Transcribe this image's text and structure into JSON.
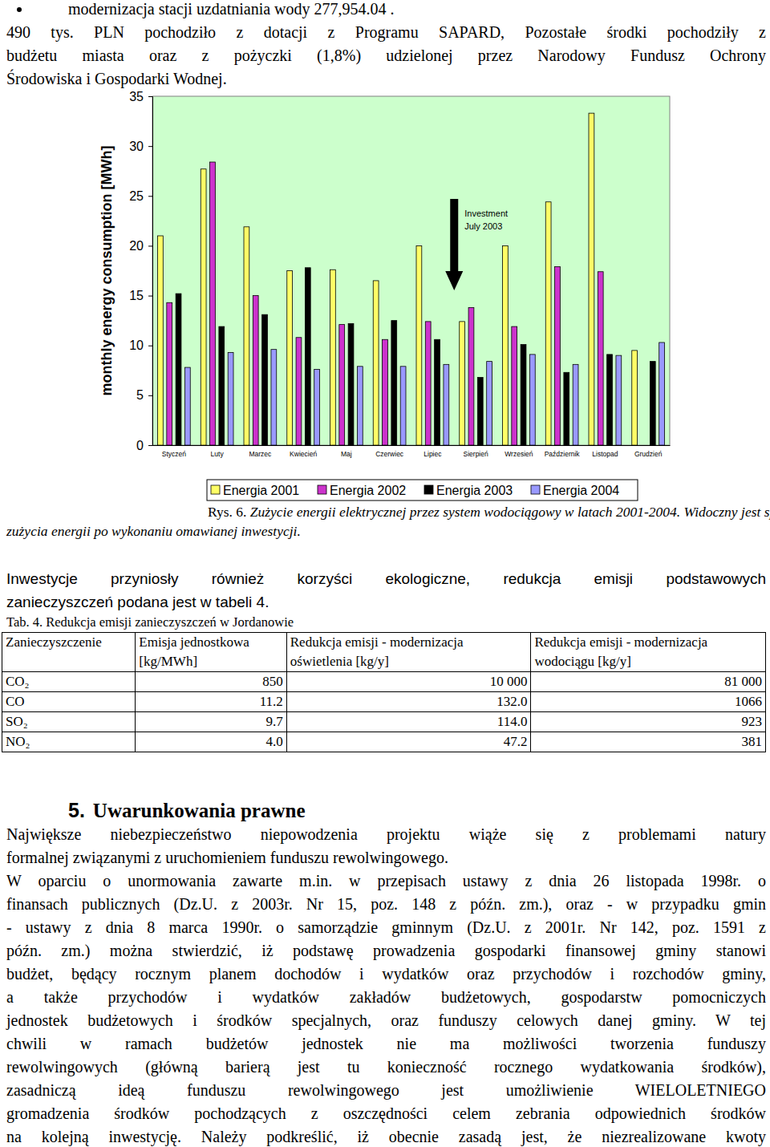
{
  "document": {
    "intro": {
      "bullet": "modernizacja stacji uzdatniania wody 277,954.04 .",
      "lines": [
        "490 tys. PLN pochodziło z dotacji z Programu SAPARD, Pozostałe środki pochodziły z",
        "budżetu miasta oraz z pożyczki (1,8%) udzielonej przez Narodowy Fundusz Ochrony",
        "Środowiska i Gospodarki Wodnej."
      ]
    },
    "caption": {
      "label": "Rys. 6.",
      "lines": [
        "Zużycie energii elektrycznej przez system wodociągowy w latach 2001-2004. Widoczny jest spadek",
        "zużycia energii po wykonaniu omawianej inwestycji."
      ]
    },
    "paragraph1": [
      "Inwestycje przyniosły również korzyści ekologiczne, redukcja emisji podstawowych",
      "zanieczyszczeń podana jest w tabeli 4."
    ],
    "table": {
      "title": "Tab. 4. Redukcja emisji zanieczyszczeń w Jordanowie",
      "header": [
        "Zanieczyszczenie",
        "Emisja jednostkowa [kg/MWh]",
        "Redukcja emisji - modernizacja oświetlenia [kg/y]",
        "Redukcja emisji - modernizacja wodociągu [kg/y]"
      ],
      "rows": [
        [
          "CO₂",
          "850",
          "10 000",
          "81 000"
        ],
        [
          "CO",
          "11.2",
          "132.0",
          "1066"
        ],
        [
          "SO₂",
          "9.7",
          "114.0",
          "923"
        ],
        [
          "NO₂",
          "4.0",
          "47.2",
          "381"
        ]
      ]
    },
    "section": {
      "number": "5.",
      "title": "Uwarunkowania prawne"
    },
    "paragraph2": [
      "Największe niebezpieczeństwo niepowodzenia projektu wiąże się z problemami natury",
      "formalnej związanymi z uruchomieniem funduszu rewolwingowego."
    ],
    "paragraph3": [
      "W oparciu o unormowania zawarte m.in. w przepisach ustawy z dnia 26 listopada 1998r. o",
      "finansach publicznych (Dz.U. z 2003r. Nr 15, poz. 148 z późn. zm.), oraz - w przypadku gmin",
      "- ustawy z dnia 8 marca 1990r. o samorządzie gminnym (Dz.U. z 2001r. Nr 142, poz. 1591 z",
      "późn. zm.) można stwierdzić, iż podstawę prowadzenia gospodarki finansowej gminy stanowi",
      "budżet, będący rocznym planem dochodów i wydatków oraz przychodów i rozchodów gminy,",
      "a także przychodów i wydatków zakładów budżetowych, gospodarstw pomocniczych",
      "jednostek budżetowych i środków specjalnych, oraz funduszy celowych danej gminy. W tej",
      "chwili w ramach budżetów jednostek nie ma możliwości tworzenia funduszy",
      "rewolwingowych (główną barierą jest tu konieczność rocznego wydatkowania środków),",
      "zasadniczą ideą funduszu rewolwingowego jest umożliwienie WIELOLETNIEGO",
      "gromadzenia środków pochodzących z oszczędności celem zebrania odpowiednich środków",
      "na kolejną inwestycję. Należy podkreślić, iż obecnie zasadą jest, że niezrealizowane kwoty"
    ]
  },
  "chart_data": {
    "type": "bar",
    "ylabel": "monthly energy consumption [MWh]",
    "categories": [
      "Styczeń",
      "Luty",
      "Marzec",
      "Kwiecień",
      "Maj",
      "Czerwiec",
      "Lipiec",
      "Sierpień",
      "Wrzesień",
      "Październik",
      "Listopad",
      "Grudzień"
    ],
    "series": [
      {
        "name": "Energia 2001",
        "color": "#ffff66",
        "values": [
          21.0,
          27.7,
          21.9,
          17.5,
          17.6,
          16.5,
          20.0,
          12.4,
          20.0,
          24.4,
          33.3,
          9.5
        ]
      },
      {
        "name": "Energia 2002",
        "color": "#cc33cc",
        "values": [
          14.3,
          28.4,
          15.0,
          10.8,
          12.1,
          10.6,
          12.4,
          13.8,
          11.9,
          17.9,
          17.4,
          null
        ]
      },
      {
        "name": "Energia 2003",
        "color": "#000000",
        "values": [
          15.2,
          11.9,
          13.1,
          17.8,
          12.2,
          12.5,
          10.6,
          6.8,
          10.1,
          7.3,
          9.1,
          8.4
        ]
      },
      {
        "name": "Energia 2004",
        "color": "#9999ff",
        "values": [
          7.8,
          9.3,
          9.6,
          7.6,
          7.9,
          7.9,
          8.1,
          8.4,
          9.1,
          8.1,
          9.0,
          10.3
        ]
      }
    ],
    "ylim": [
      0,
      35
    ],
    "yticks": [
      0,
      5,
      10,
      15,
      20,
      25,
      30,
      35
    ],
    "grid": false,
    "legend": "bottom",
    "annotations": [
      {
        "text": [
          "Investment",
          "July 2003"
        ]
      }
    ]
  }
}
